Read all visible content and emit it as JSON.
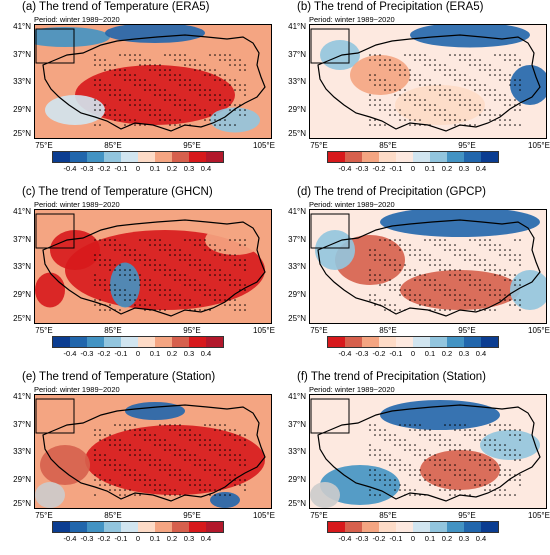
{
  "period_label": "Period: winter 1989~2020",
  "lat_labels": [
    "41°N",
    "37°N",
    "33°N",
    "29°N",
    "25°N"
  ],
  "lon_labels": [
    "75°E",
    "85°E",
    "95°E",
    "105°E"
  ],
  "colorbar_ticks": [
    "-0.4",
    "-0.3",
    "-0.2",
    "-0.1",
    "0",
    "0.1",
    "0.2",
    "0.3",
    "0.4"
  ],
  "temp_palette": [
    "#0b3d91",
    "#2166ac",
    "#4393c3",
    "#92c5de",
    "#d1e5f0",
    "#fddbc7",
    "#f4a582",
    "#d6604d",
    "#d7191c",
    "#b2182b"
  ],
  "precip_palette": [
    "#d7191c",
    "#d6604d",
    "#f4a582",
    "#fddbc7",
    "#fde9e0",
    "#d1e5f0",
    "#92c5de",
    "#4393c3",
    "#2166ac",
    "#0b3d91"
  ],
  "panels": [
    {
      "title": "(a) The trend of Temperature (ERA5)",
      "variable": "temperature"
    },
    {
      "title": "(b) The trend of Precipitation (ERA5)",
      "variable": "precipitation"
    },
    {
      "title": "(c) The trend of Temperature (GHCN)",
      "variable": "temperature"
    },
    {
      "title": "(d) The trend of Precipitation (GPCP)",
      "variable": "precipitation"
    },
    {
      "title": "(e) The trend of Temperature (Station)",
      "variable": "temperature"
    },
    {
      "title": "(f) The trend of Precipitation (Station)",
      "variable": "precipitation"
    }
  ]
}
